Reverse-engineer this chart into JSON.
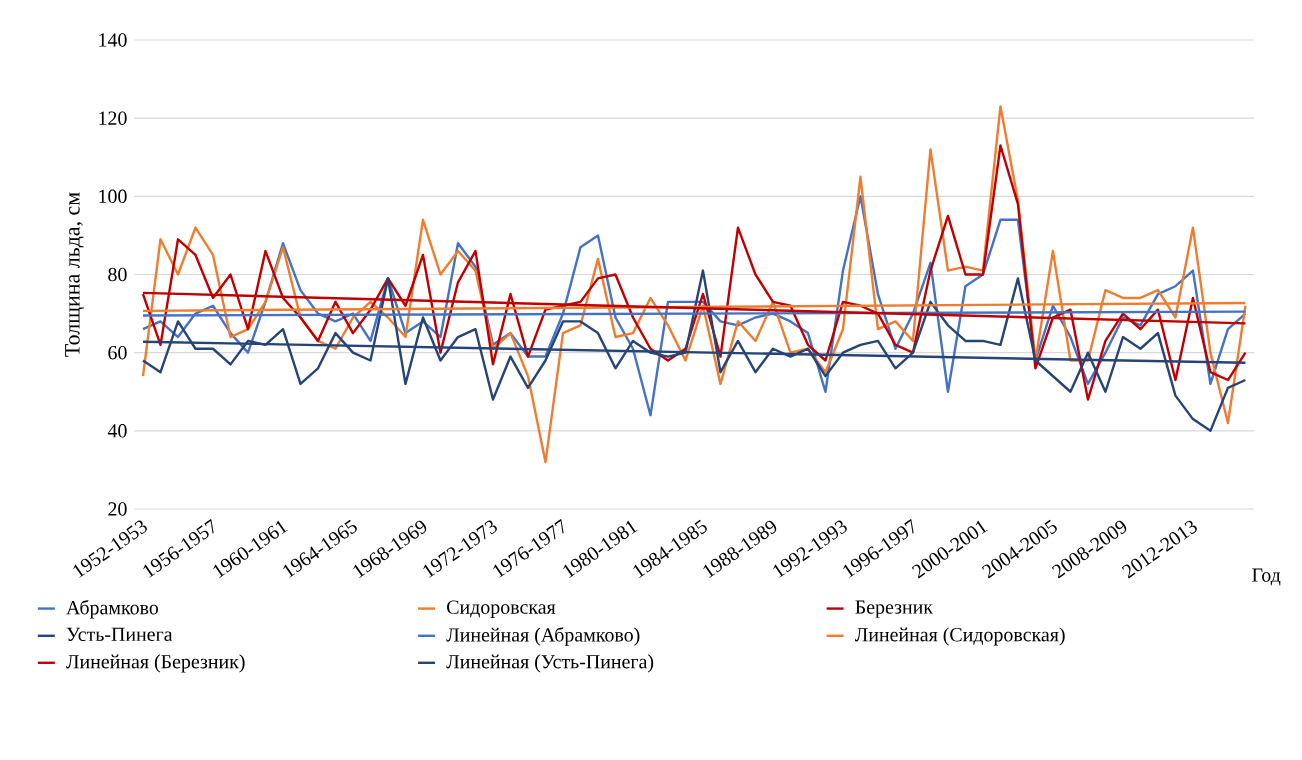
{
  "chart_data": {
    "type": "line",
    "ylabel": "Толщина льда, см",
    "xlabel": "Год",
    "categories": [
      "1952-1953",
      null,
      null,
      null,
      "1956-1957",
      null,
      null,
      null,
      "1960-1961",
      null,
      null,
      null,
      "1964-1965",
      null,
      null,
      null,
      "1968-1969",
      null,
      null,
      null,
      "1972-1973",
      null,
      null,
      null,
      "1976-1977",
      null,
      null,
      null,
      "1980-1981",
      null,
      null,
      null,
      "1984-1985",
      null,
      null,
      null,
      "1988-1989",
      null,
      null,
      null,
      "1992-1993",
      null,
      null,
      null,
      "1996-1997",
      null,
      null,
      null,
      "2000-2001",
      null,
      null,
      null,
      "2004-2005",
      null,
      null,
      null,
      "2008-2009",
      null,
      null,
      null,
      "2012-2013",
      null,
      null,
      null
    ],
    "ylim": [
      20,
      140
    ],
    "yticks": [
      20,
      40,
      60,
      80,
      100,
      120,
      140
    ],
    "grid": "y",
    "legend": "bottom",
    "series": [
      {
        "name": "Абрамково",
        "color": "#4472c4",
        "values": [
          66,
          68,
          64,
          70,
          72,
          65,
          60,
          73,
          88,
          76,
          70,
          68,
          70,
          63,
          79,
          65,
          68,
          64,
          88,
          82,
          62,
          65,
          59,
          59,
          70,
          87,
          90,
          69,
          61,
          44,
          73,
          73,
          73,
          68,
          67,
          69,
          70,
          68,
          65,
          50,
          81,
          100,
          75,
          61,
          70,
          83,
          50,
          77,
          80,
          94,
          94,
          58,
          72,
          64,
          52,
          60,
          69,
          67,
          75,
          77,
          81,
          52,
          66,
          70
        ]
      },
      {
        "name": "Сидоровская",
        "color": "#ed7d31",
        "values": [
          54,
          89,
          80,
          92,
          85,
          64,
          66,
          73,
          87,
          69,
          63,
          61,
          69,
          73,
          69,
          64,
          94,
          80,
          86,
          81,
          61,
          65,
          54,
          32,
          65,
          67,
          84,
          64,
          65,
          74,
          67,
          58,
          72,
          52,
          68,
          63,
          73,
          60,
          61,
          55,
          66,
          105,
          66,
          68,
          63,
          112,
          81,
          82,
          81,
          123,
          99,
          58,
          86,
          58,
          58,
          76,
          74,
          74,
          76,
          69,
          92,
          60,
          42,
          72
        ]
      },
      {
        "name": "Березник",
        "color": "#c00000",
        "values": [
          75,
          62,
          89,
          85,
          74,
          80,
          66,
          86,
          74,
          69,
          63,
          73,
          65,
          71,
          79,
          72,
          85,
          60,
          78,
          86,
          57,
          75,
          59,
          71,
          72,
          73,
          79,
          80,
          69,
          61,
          58,
          61,
          75,
          59,
          92,
          80,
          73,
          72,
          62,
          58,
          73,
          72,
          70,
          62,
          60,
          81,
          95,
          80,
          80,
          113,
          98,
          56,
          69,
          71,
          48,
          63,
          70,
          66,
          71,
          53,
          74,
          55,
          53,
          60
        ]
      },
      {
        "name": "Усть-Пинега",
        "color": "#264478",
        "values": [
          58,
          55,
          68,
          61,
          61,
          57,
          63,
          62,
          66,
          52,
          56,
          65,
          60,
          58,
          79,
          52,
          69,
          58,
          64,
          66,
          48,
          59,
          51,
          58,
          68,
          68,
          65,
          56,
          63,
          60,
          59,
          60,
          81,
          55,
          63,
          55,
          61,
          59,
          61,
          54,
          60,
          62,
          63,
          56,
          60,
          73,
          67,
          63,
          63,
          62,
          79,
          58,
          54,
          50,
          60,
          50,
          64,
          61,
          65,
          49,
          43,
          40,
          51,
          53
        ]
      },
      {
        "name": "Линейная (Абрамково)",
        "color": "#4472c4",
        "values": [
          69.5,
          null,
          null,
          null,
          null,
          null,
          null,
          null,
          null,
          null,
          null,
          null,
          null,
          null,
          null,
          null,
          null,
          null,
          null,
          null,
          null,
          null,
          null,
          null,
          null,
          null,
          null,
          null,
          null,
          null,
          null,
          null,
          null,
          null,
          null,
          null,
          null,
          null,
          null,
          null,
          null,
          null,
          null,
          null,
          null,
          null,
          null,
          null,
          null,
          null,
          null,
          null,
          null,
          null,
          null,
          null,
          null,
          null,
          null,
          null,
          null,
          null,
          null,
          70.5
        ]
      },
      {
        "name": "Линейная (Сидоровская)",
        "color": "#ed7d31",
        "values": [
          70.7,
          null,
          null,
          null,
          null,
          null,
          null,
          null,
          null,
          null,
          null,
          null,
          null,
          null,
          null,
          null,
          null,
          null,
          null,
          null,
          null,
          null,
          null,
          null,
          null,
          null,
          null,
          null,
          null,
          null,
          null,
          null,
          null,
          null,
          null,
          null,
          null,
          null,
          null,
          null,
          null,
          null,
          null,
          null,
          null,
          null,
          null,
          null,
          null,
          null,
          null,
          null,
          null,
          null,
          null,
          null,
          null,
          null,
          null,
          null,
          null,
          null,
          null,
          72.7
        ]
      },
      {
        "name": "Линейная (Березник)",
        "color": "#c00000",
        "values": [
          75.3,
          null,
          null,
          null,
          null,
          null,
          null,
          null,
          null,
          null,
          null,
          null,
          null,
          null,
          null,
          null,
          null,
          null,
          null,
          null,
          null,
          null,
          null,
          null,
          null,
          null,
          null,
          null,
          null,
          null,
          null,
          null,
          null,
          null,
          null,
          null,
          null,
          null,
          null,
          null,
          null,
          null,
          null,
          null,
          null,
          null,
          null,
          null,
          null,
          null,
          null,
          null,
          null,
          null,
          null,
          null,
          null,
          null,
          null,
          null,
          null,
          null,
          null,
          67.5
        ]
      },
      {
        "name": "Линейная (Усть-Пинега)",
        "color": "#264478",
        "values": [
          62.8,
          null,
          null,
          null,
          null,
          null,
          null,
          null,
          null,
          null,
          null,
          null,
          null,
          null,
          null,
          null,
          null,
          null,
          null,
          null,
          null,
          null,
          null,
          null,
          null,
          null,
          null,
          null,
          null,
          null,
          null,
          null,
          null,
          null,
          null,
          null,
          null,
          null,
          null,
          null,
          null,
          null,
          null,
          null,
          null,
          null,
          null,
          null,
          null,
          null,
          null,
          null,
          null,
          null,
          null,
          null,
          null,
          null,
          null,
          null,
          null,
          null,
          null,
          57.4
        ]
      }
    ]
  }
}
